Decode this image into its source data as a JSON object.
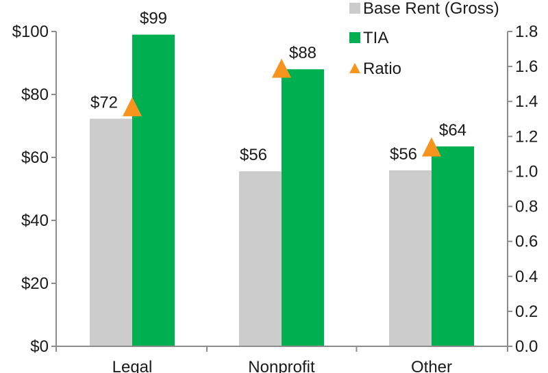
{
  "chart_data": {
    "type": "bar",
    "categories": [
      "Legal",
      "Nonprofit",
      "Other"
    ],
    "series": [
      {
        "name": "Base Rent (Gross)",
        "axis": "left",
        "kind": "bar",
        "color": "#cccccc",
        "values": [
          72.3,
          55.6,
          55.9
        ],
        "labels": [
          "$72",
          "$56",
          "$56"
        ]
      },
      {
        "name": "TIA",
        "axis": "left",
        "kind": "bar",
        "color": "#00b050",
        "values": [
          99,
          88,
          63.5
        ],
        "labels": [
          "$99",
          "$88",
          "$64"
        ]
      },
      {
        "name": "Ratio",
        "axis": "right",
        "kind": "marker",
        "marker": "triangle",
        "color": "#f7941d",
        "values": [
          1.37,
          1.59,
          1.14
        ]
      }
    ],
    "y_left": {
      "min": 0,
      "max": 100,
      "ticks": [
        0,
        20,
        40,
        60,
        80,
        100
      ],
      "tick_labels": [
        "$0",
        "$20",
        "$40",
        "$60",
        "$80",
        "$100"
      ]
    },
    "y_right": {
      "min": 0,
      "max": 1.8,
      "ticks": [
        0,
        0.2,
        0.4,
        0.6,
        0.8,
        1.0,
        1.2,
        1.4,
        1.6,
        1.8
      ],
      "tick_labels": [
        "0.0",
        "0.2",
        "0.4",
        "0.6",
        "0.8",
        "1.0",
        "1.2",
        "1.4",
        "1.6",
        "1.8"
      ]
    },
    "title": "",
    "xlabel": "",
    "ylabel": "",
    "grid": false,
    "legend_placement": "top-right"
  }
}
